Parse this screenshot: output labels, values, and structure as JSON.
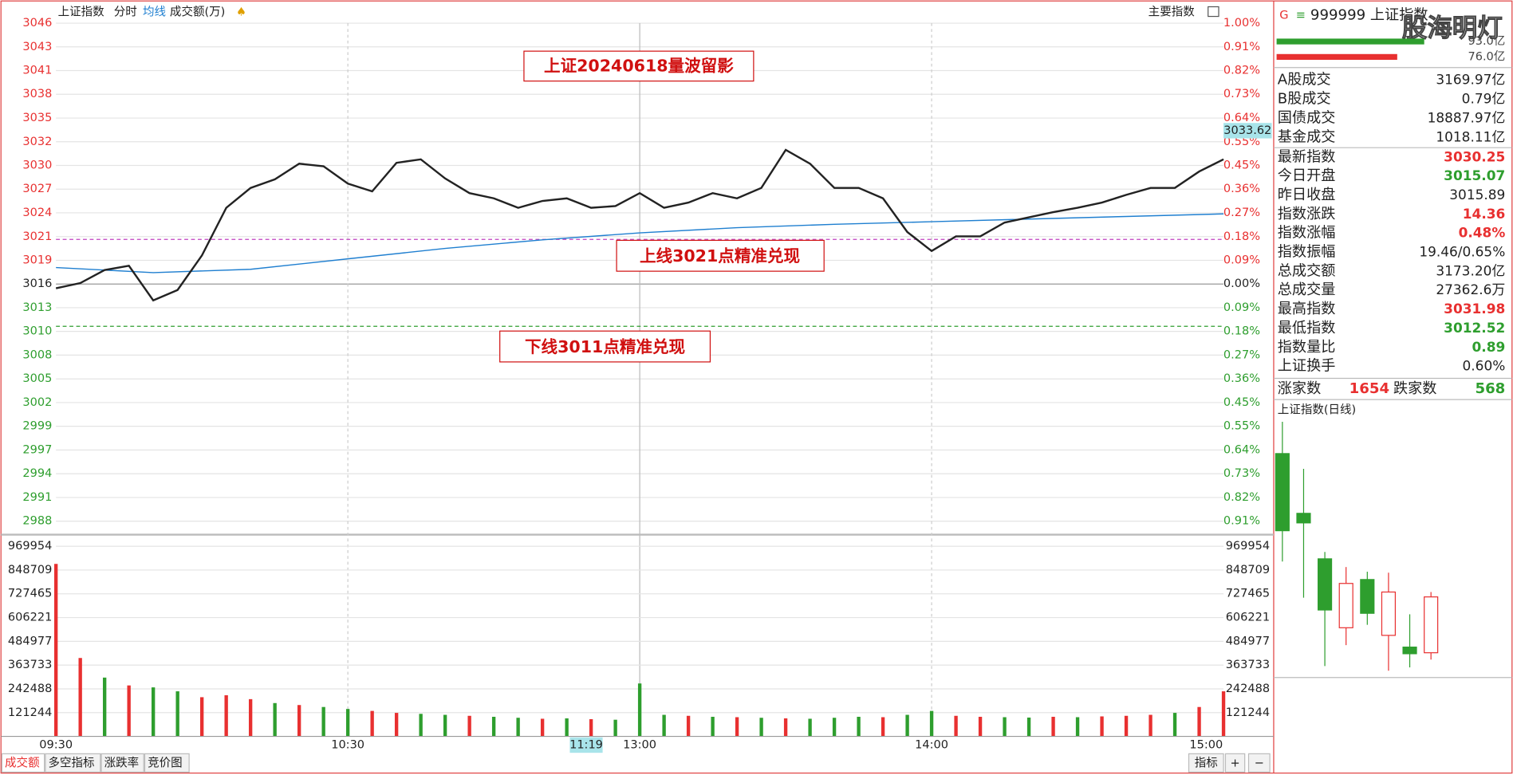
{
  "header": {
    "title": "上证指数",
    "tabs": [
      "分时",
      "均线",
      "成交额(万)"
    ],
    "right": "主要指数"
  },
  "price_chart": {
    "type": "line",
    "xlim": [
      0,
      240
    ],
    "ylim": [
      2988.47,
      3046.05
    ],
    "base": 3015.89,
    "yticks": [
      {
        "value": 3046.05,
        "label": "3046"
      },
      {
        "value": 3043.31,
        "label": "3043"
      },
      {
        "value": 3040.57,
        "label": "3041"
      },
      {
        "value": 3037.83,
        "label": "3038"
      },
      {
        "value": 3035.08,
        "label": "3035"
      },
      {
        "value": 3032.34,
        "label": "3032"
      },
      {
        "value": 3029.6,
        "label": "3030"
      },
      {
        "value": 3026.86,
        "label": "3027"
      },
      {
        "value": 3024.12,
        "label": "3024"
      },
      {
        "value": 3021.37,
        "label": "3021"
      },
      {
        "value": 3018.63,
        "label": "3019"
      },
      {
        "value": 3015.89,
        "label": "3016"
      },
      {
        "value": 3013.15,
        "label": "3013"
      },
      {
        "value": 3010.41,
        "label": "3010"
      },
      {
        "value": 3007.67,
        "label": "3008"
      },
      {
        "value": 3004.92,
        "label": "3005"
      },
      {
        "value": 3002.18,
        "label": "3002"
      },
      {
        "value": 2999.44,
        "label": "2999"
      },
      {
        "value": 2996.7,
        "label": "2997"
      },
      {
        "value": 2993.96,
        "label": "2994"
      },
      {
        "value": 2991.21,
        "label": "2991"
      },
      {
        "value": 2988.47,
        "label": "2988"
      }
    ],
    "pct_labels": [
      "1.00%",
      "0.91%",
      "0.82%",
      "0.73%",
      "0.64%",
      "0.55%",
      "0.45%",
      "0.36%",
      "0.27%",
      "0.18%",
      "0.09%",
      "0.00%",
      "0.09%",
      "0.18%",
      "0.27%",
      "0.36%",
      "0.45%",
      "0.55%",
      "0.64%",
      "0.73%",
      "0.82%",
      "0.91%"
    ],
    "xticks": [
      {
        "value": 0,
        "label": "09:30"
      },
      {
        "value": 60,
        "label": "10:30"
      },
      {
        "value": 120,
        "label": "13:00"
      },
      {
        "value": 180,
        "label": "14:00"
      },
      {
        "value": 240,
        "label": "15:00"
      }
    ],
    "cursor_time": {
      "value": 109,
      "label": "11:19"
    },
    "cursor_price": 3033.62,
    "price": {
      "color": "#222222",
      "x": [
        0,
        5,
        10,
        15,
        20,
        25,
        30,
        35,
        40,
        45,
        50,
        55,
        60,
        65,
        70,
        75,
        80,
        85,
        90,
        95,
        100,
        105,
        110,
        115,
        120,
        125,
        130,
        135,
        140,
        145,
        150,
        155,
        160,
        165,
        170,
        175,
        180,
        185,
        190,
        195,
        200,
        205,
        210,
        215,
        220,
        225,
        230,
        235,
        240
      ],
      "values": [
        3015.4,
        3016.0,
        3017.5,
        3018.0,
        3014.0,
        3015.2,
        3019.2,
        3024.7,
        3027.0,
        3028.0,
        3029.8,
        3029.5,
        3027.5,
        3026.6,
        3029.9,
        3030.3,
        3028.1,
        3026.4,
        3025.8,
        3024.7,
        3025.5,
        3025.8,
        3024.7,
        3024.9,
        3026.4,
        3024.7,
        3025.3,
        3026.4,
        3025.8,
        3027.0,
        3031.4,
        3029.8,
        3027.0,
        3027.0,
        3025.8,
        3021.9,
        3019.7,
        3021.4,
        3021.4,
        3023.0,
        3023.6,
        3024.2,
        3024.7,
        3025.3,
        3026.2,
        3027.0,
        3027.0,
        3028.9,
        3030.3
      ]
    },
    "avg": {
      "color": "#1f7fd0",
      "x": [
        0,
        20,
        40,
        60,
        80,
        100,
        120,
        140,
        160,
        180,
        200,
        220,
        240
      ],
      "values": [
        3017.8,
        3017.2,
        3017.6,
        3018.8,
        3020.0,
        3021.0,
        3021.8,
        3022.4,
        3022.8,
        3023.1,
        3023.4,
        3023.7,
        3024.0
      ]
    },
    "levels": [
      {
        "value": 3021.05,
        "color": "#c040c0"
      },
      {
        "value": 3011.0,
        "color": "#2e9e2e"
      }
    ]
  },
  "annotations": [
    "上证20240618量波留影",
    "上线3021点精准兑现",
    "下线3011点精准兑现"
  ],
  "volume_chart": {
    "type": "bar",
    "ylim": [
      0,
      969954
    ],
    "yticks": [
      969954,
      848709,
      727465,
      606221,
      484977,
      363733,
      242488,
      121244
    ],
    "x": [
      0,
      5,
      10,
      15,
      20,
      25,
      30,
      35,
      40,
      45,
      50,
      55,
      60,
      65,
      70,
      75,
      80,
      85,
      90,
      95,
      100,
      105,
      110,
      115,
      120,
      125,
      130,
      135,
      140,
      145,
      150,
      155,
      160,
      165,
      170,
      175,
      180,
      185,
      190,
      195,
      200,
      205,
      210,
      215,
      220,
      225,
      230,
      235,
      240
    ],
    "values": [
      880000,
      400000,
      300000,
      260000,
      250000,
      230000,
      200000,
      210000,
      190000,
      170000,
      160000,
      150000,
      140000,
      130000,
      120000,
      115000,
      110000,
      105000,
      100000,
      95000,
      90000,
      92000,
      88000,
      85000,
      270000,
      110000,
      105000,
      100000,
      98000,
      95000,
      92000,
      90000,
      95000,
      100000,
      98000,
      110000,
      130000,
      105000,
      100000,
      98000,
      96000,
      100000,
      98000,
      102000,
      105000,
      110000,
      120000,
      150000,
      230000
    ],
    "colors": [
      "#e83030",
      "#e83030",
      "#2e9e2e",
      "#e83030",
      "#2e9e2e",
      "#2e9e2e",
      "#e83030",
      "#e83030",
      "#e83030",
      "#2e9e2e",
      "#e83030",
      "#2e9e2e",
      "#2e9e2e",
      "#e83030",
      "#e83030",
      "#2e9e2e",
      "#2e9e2e",
      "#e83030",
      "#2e9e2e",
      "#2e9e2e",
      "#e83030",
      "#2e9e2e",
      "#e83030",
      "#2e9e2e",
      "#2e9e2e",
      "#2e9e2e",
      "#e83030",
      "#2e9e2e",
      "#e83030",
      "#2e9e2e",
      "#e83030",
      "#2e9e2e",
      "#2e9e2e",
      "#2e9e2e",
      "#e83030",
      "#2e9e2e",
      "#2e9e2e",
      "#e83030",
      "#e83030",
      "#2e9e2e",
      "#2e9e2e",
      "#e83030",
      "#2e9e2e",
      "#e83030",
      "#e83030",
      "#e83030",
      "#2e9e2e",
      "#e83030",
      "#e83030"
    ]
  },
  "quote": {
    "code": "999999 上证指数",
    "watermark": "股海明灯",
    "bar_values": [
      93.0,
      76.0
    ],
    "bar_labels": [
      "93.0亿",
      "76.0亿"
    ],
    "bar_colors": [
      "#2e9e2e",
      "#e83030"
    ],
    "rows": [
      [
        "A股成交",
        "3169.97亿",
        "#222222"
      ],
      [
        "B股成交",
        "0.79亿",
        "#222222"
      ],
      [
        "国债成交",
        "18887.97亿",
        "#222222"
      ],
      [
        "基金成交",
        "1018.11亿",
        "#222222"
      ],
      [
        "最新指数",
        "3030.25",
        "#e83030"
      ],
      [
        "今日开盘",
        "3015.07",
        "#2e9e2e"
      ],
      [
        "昨日收盘",
        "3015.89",
        "#222222"
      ],
      [
        "指数涨跌",
        "14.36",
        "#e83030"
      ],
      [
        "指数涨幅",
        "0.48%",
        "#e83030"
      ],
      [
        "指数振幅",
        "19.46/0.65%",
        "#222222"
      ],
      [
        "总成交额",
        "3173.20亿",
        "#222222"
      ],
      [
        "总成交量",
        "27362.6万",
        "#222222"
      ],
      [
        "最高指数",
        "3031.98",
        "#e83030"
      ],
      [
        "最低指数",
        "3012.52",
        "#2e9e2e"
      ],
      [
        "指数量比",
        "0.89",
        "#2e9e2e"
      ],
      [
        "上证换手",
        "0.60%",
        "#222222"
      ]
    ],
    "breadth": {
      "up_label": "涨家数",
      "up": 1654,
      "down_label": "跌家数",
      "down": 568
    }
  },
  "daily_chart": {
    "type": "candlestick",
    "title": "上证指数(日线)",
    "ylim": [
      3000,
      3130
    ],
    "open": [
      3113.7,
      3083.1,
      3059.8,
      3024.5,
      3049.2,
      3020.6,
      3014.6,
      3011.7
    ],
    "high": [
      3130,
      3105.9,
      3063.3,
      3055.6,
      3053.2,
      3052.7,
      3031.4,
      3042.8
    ],
    "low": [
      3058.4,
      3039.9,
      3004.9,
      3015.6,
      3026.0,
      3002.5,
      3004.2,
      3008.2
    ],
    "close": [
      3074.2,
      3078.2,
      3033.6,
      3047.2,
      3031.9,
      3042.8,
      3011.2,
      3040.3
    ]
  },
  "footer": {
    "tabs": [
      "成交额",
      "多空指标",
      "涨跌率",
      "竞价图"
    ],
    "right": [
      "指标",
      "+",
      "−"
    ]
  }
}
